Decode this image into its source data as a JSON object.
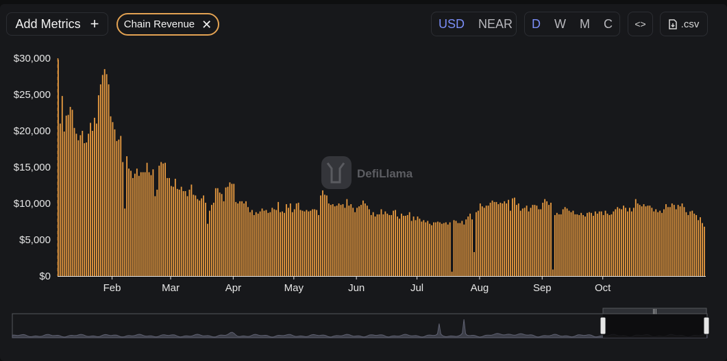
{
  "toolbar": {
    "add_metrics_label": "Add Metrics",
    "add_icon": "plus-icon",
    "metric_chip": "Chain Revenue",
    "chip_close_icon": "close-icon",
    "currency_options": [
      "USD",
      "NEAR"
    ],
    "currency_selected": "USD",
    "granularity_options": [
      "D",
      "W",
      "M",
      "C"
    ],
    "granularity_selected": "D",
    "embed_icon": "code-icon",
    "csv_icon": "file-download-icon",
    "csv_label": ".csv"
  },
  "watermark": {
    "text": "DefiLlama",
    "icon": "llama-logo-icon"
  },
  "colors": {
    "bar": "#e79a40",
    "background": "#17181b",
    "accent": "#7b8ef7",
    "overview_line": "#5f6171"
  },
  "chart_data": {
    "type": "bar",
    "title": "",
    "xlabel": "",
    "ylabel": "",
    "ylim": [
      0,
      30000
    ],
    "y_ticks": [
      "$0",
      "$5,000",
      "$10,000",
      "$15,000",
      "$20,000",
      "$25,000",
      "$30,000"
    ],
    "y_tick_values": [
      0,
      5000,
      10000,
      15000,
      20000,
      25000,
      30000
    ],
    "x_ticks": [
      "Feb",
      "Mar",
      "Apr",
      "May",
      "Jun",
      "Jul",
      "Aug",
      "Sep",
      "Oct"
    ],
    "x_tick_day_index": [
      27,
      56,
      87,
      117,
      148,
      178,
      209,
      240,
      270
    ],
    "grid": false,
    "legend": "none",
    "series": [
      {
        "values": [
          29800,
          21000,
          24800,
          19900,
          22100,
          22200,
          23300,
          22900,
          20400,
          19600,
          18700,
          19400,
          20000,
          18300,
          18400,
          19600,
          21100,
          20000,
          21800,
          21000,
          24900,
          26400,
          27700,
          28500,
          27800,
          26400,
          22000,
          21200,
          20200,
          18600,
          18800,
          19300,
          15700,
          9300,
          16500,
          14800,
          14500,
          13500,
          14100,
          14800,
          13800,
          14300,
          14300,
          14300,
          15600,
          14300,
          13900,
          14700,
          11000,
          11900,
          15200,
          15700,
          15500,
          15600,
          13500,
          13500,
          12400,
          12300,
          13400,
          12000,
          11900,
          12300,
          11700,
          11700,
          11000,
          11900,
          12600,
          11200,
          11100,
          10600,
          10400,
          10700,
          11100,
          10100,
          7200,
          9000,
          9800,
          10100,
          12100,
          12100,
          11500,
          11300,
          10300,
          12200,
          12300,
          12900,
          12700,
          12700,
          10200,
          10000,
          10300,
          10300,
          10000,
          10300,
          9500,
          8800,
          9100,
          8400,
          8800,
          8600,
          8900,
          9300,
          9000,
          9100,
          8700,
          8800,
          9400,
          9200,
          9100,
          10200,
          8800,
          8900,
          8700,
          9900,
          9400,
          10000,
          8800,
          9200,
          10000,
          10100,
          9100,
          9000,
          8900,
          9100,
          8900,
          9000,
          9200,
          9200,
          9100,
          8400,
          11100,
          11800,
          11200,
          11100,
          10000,
          9800,
          9900,
          9600,
          9700,
          10000,
          9800,
          9900,
          9400,
          10600,
          9700,
          9900,
          9400,
          8800,
          9400,
          9600,
          9800,
          10400,
          10000,
          9700,
          9200,
          8400,
          8800,
          8200,
          8500,
          8500,
          9200,
          8500,
          8900,
          8600,
          8400,
          8400,
          9000,
          9100,
          8200,
          7900,
          8600,
          8300,
          8300,
          8400,
          8800,
          7600,
          8200,
          7700,
          8200,
          7900,
          7500,
          7700,
          7400,
          7600,
          7200,
          7000,
          7400,
          7400,
          7500,
          7400,
          7200,
          7300,
          7400,
          7100,
          7400,
          600,
          7700,
          7600,
          7300,
          7300,
          7600,
          7100,
          7800,
          8200,
          8600,
          7800,
          3300,
          8800,
          9000,
          10000,
          9600,
          9400,
          9700,
          9700,
          10100,
          10400,
          10200,
          10200,
          9900,
          10100,
          10000,
          10300,
          10000,
          10500,
          9000,
          10700,
          10800,
          9800,
          10000,
          9000,
          9300,
          9400,
          9700,
          8900,
          9400,
          9800,
          9800,
          9700,
          9200,
          9200,
          10100,
          10600,
          10300,
          9800,
          10100,
          900,
          8400,
          8700,
          8500,
          8500,
          9200,
          9500,
          9300,
          9000,
          8800,
          9000,
          8500,
          8500,
          8400,
          8700,
          8400,
          8200,
          8700,
          8800,
          8700,
          8300,
          8900,
          8600,
          8900,
          8900,
          8400,
          9000,
          8600,
          8400,
          8500,
          8900,
          9200,
          9500,
          9300,
          9200,
          9700,
          9400,
          8900,
          9400,
          8900,
          9400,
          10600,
          10000,
          9800,
          9600,
          9900,
          9600,
          9700,
          9700,
          9400,
          8900,
          9200,
          8800,
          9000,
          8700,
          9200,
          9900,
          9500,
          9500,
          10000,
          9800,
          9200,
          9800,
          9600,
          10000,
          9500,
          8800,
          8400,
          8900,
          9000,
          8600,
          8400,
          7700,
          8100,
          7300,
          6800
        ]
      }
    ]
  }
}
